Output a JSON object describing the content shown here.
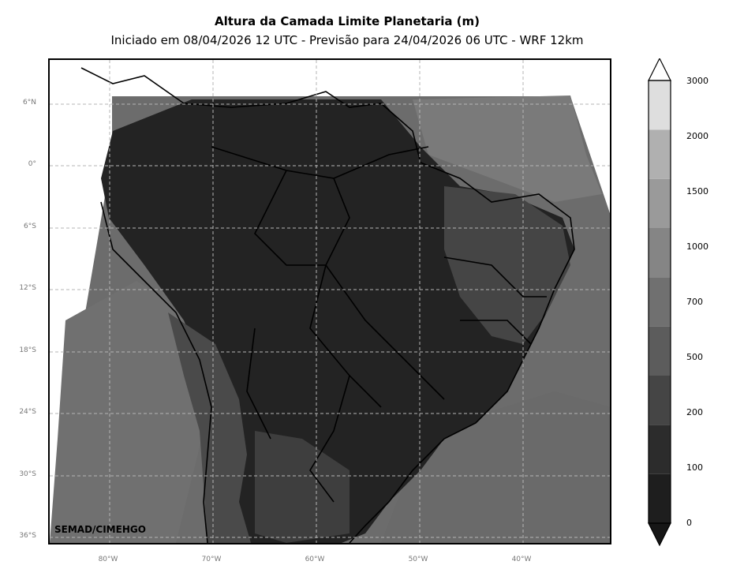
{
  "title": "Altura da Camada Limite Planetaria (m)",
  "subtitle": "Iniciado em 08/04/2026 12 UTC - Previsão para 24/04/2026 06 UTC - WRF 12km",
  "credit": "SEMAD/CIMEHGO",
  "map": {
    "lat_ticks": [
      "6°N",
      "0°",
      "6°S",
      "12°S",
      "18°S",
      "24°S",
      "30°S",
      "36°S"
    ],
    "lon_ticks": [
      "80°W",
      "70°W",
      "60°W",
      "50°W",
      "40°W"
    ]
  },
  "colorbar": {
    "levels": [
      "0",
      "100",
      "200",
      "500",
      "700",
      "1000",
      "1500",
      "2000",
      "3000"
    ],
    "colors": [
      "#1e1e1e",
      "#2c2c2c",
      "#454545",
      "#5c5c5c",
      "#707070",
      "#858585",
      "#9a9a9a",
      "#b0b0b0",
      "#dedede"
    ],
    "extend": "both"
  }
}
